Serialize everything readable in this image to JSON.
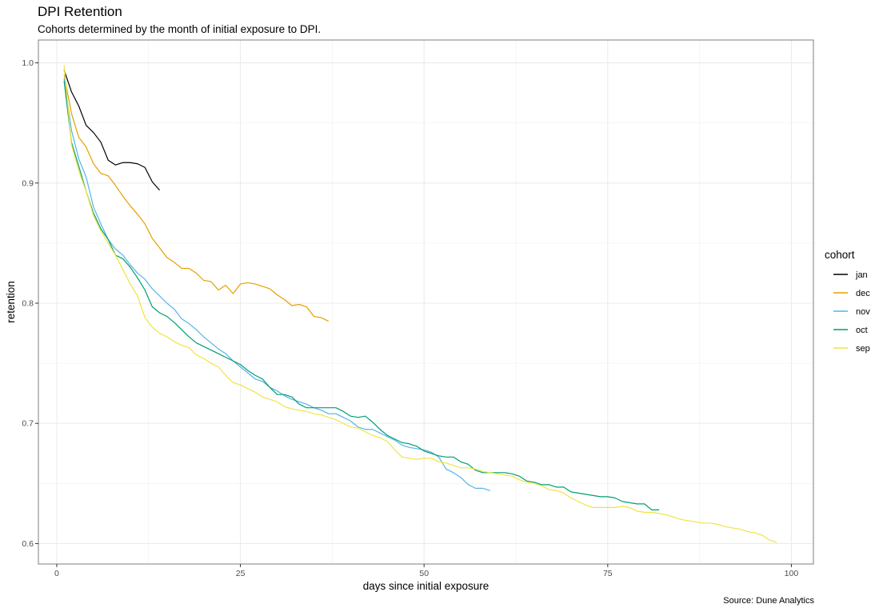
{
  "chart_data": {
    "type": "line",
    "title": "DPI Retention",
    "subtitle": "Cohorts determined by the month of initial exposure to DPI.",
    "caption": "Source: Dune Analytics",
    "xlabel": "days since initial exposure",
    "ylabel": "retention",
    "xlim": [
      -2.5,
      103
    ],
    "ylim": [
      0.583,
      1.019
    ],
    "x_ticks": [
      0,
      25,
      50,
      75,
      100
    ],
    "y_ticks": [
      0.6,
      0.7,
      0.8,
      0.9,
      1.0
    ],
    "y_tick_labels": [
      "0.6",
      "0.7",
      "0.8",
      "0.9",
      "1.0"
    ],
    "grid": true,
    "legend": {
      "title": "cohort",
      "position": "right"
    },
    "series": [
      {
        "name": "jan",
        "color": "#000000",
        "points": [
          [
            1,
            0.994
          ],
          [
            2,
            0.976
          ],
          [
            3,
            0.964
          ],
          [
            4,
            0.948
          ],
          [
            5,
            0.942
          ],
          [
            6,
            0.934
          ],
          [
            7,
            0.919
          ],
          [
            8,
            0.915
          ],
          [
            9,
            0.917
          ],
          [
            10,
            0.917
          ],
          [
            11,
            0.916
          ],
          [
            12,
            0.913
          ],
          [
            13,
            0.901
          ],
          [
            14,
            0.894
          ]
        ]
      },
      {
        "name": "dec",
        "color": "#E69F00",
        "points": [
          [
            1,
            0.99
          ],
          [
            2,
            0.958
          ],
          [
            3,
            0.938
          ],
          [
            4,
            0.93
          ],
          [
            5,
            0.916
          ],
          [
            6,
            0.908
          ],
          [
            7,
            0.906
          ],
          [
            8,
            0.898
          ],
          [
            9,
            0.889
          ],
          [
            10,
            0.881
          ],
          [
            11,
            0.874
          ],
          [
            12,
            0.866
          ],
          [
            13,
            0.854
          ],
          [
            14,
            0.846
          ],
          [
            15,
            0.838
          ],
          [
            16,
            0.834
          ],
          [
            17,
            0.829
          ],
          [
            18,
            0.829
          ],
          [
            19,
            0.825
          ],
          [
            20,
            0.819
          ],
          [
            21,
            0.818
          ],
          [
            22,
            0.811
          ],
          [
            23,
            0.815
          ],
          [
            24,
            0.808
          ],
          [
            25,
            0.816
          ],
          [
            26,
            0.817
          ],
          [
            27,
            0.816
          ],
          [
            28,
            0.814
          ],
          [
            29,
            0.812
          ],
          [
            30,
            0.807
          ],
          [
            31,
            0.803
          ],
          [
            32,
            0.798
          ],
          [
            33,
            0.799
          ],
          [
            34,
            0.797
          ],
          [
            35,
            0.789
          ],
          [
            36,
            0.788
          ],
          [
            37,
            0.785
          ]
        ]
      },
      {
        "name": "nov",
        "color": "#56B4E9",
        "points": [
          [
            1,
            0.987
          ],
          [
            2,
            0.944
          ],
          [
            3,
            0.92
          ],
          [
            4,
            0.905
          ],
          [
            5,
            0.88
          ],
          [
            6,
            0.866
          ],
          [
            7,
            0.853
          ],
          [
            8,
            0.845
          ],
          [
            9,
            0.84
          ],
          [
            10,
            0.832
          ],
          [
            11,
            0.825
          ],
          [
            12,
            0.82
          ],
          [
            13,
            0.812
          ],
          [
            14,
            0.806
          ],
          [
            15,
            0.8
          ],
          [
            16,
            0.795
          ],
          [
            17,
            0.787
          ],
          [
            18,
            0.783
          ],
          [
            19,
            0.778
          ],
          [
            20,
            0.772
          ],
          [
            21,
            0.767
          ],
          [
            22,
            0.762
          ],
          [
            23,
            0.758
          ],
          [
            24,
            0.752
          ],
          [
            25,
            0.747
          ],
          [
            26,
            0.742
          ],
          [
            27,
            0.737
          ],
          [
            28,
            0.735
          ],
          [
            29,
            0.73
          ],
          [
            30,
            0.727
          ],
          [
            31,
            0.723
          ],
          [
            32,
            0.72
          ],
          [
            33,
            0.718
          ],
          [
            34,
            0.716
          ],
          [
            35,
            0.713
          ],
          [
            36,
            0.711
          ],
          [
            37,
            0.708
          ],
          [
            38,
            0.708
          ],
          [
            39,
            0.705
          ],
          [
            40,
            0.702
          ],
          [
            41,
            0.697
          ],
          [
            42,
            0.695
          ],
          [
            43,
            0.695
          ],
          [
            44,
            0.692
          ],
          [
            45,
            0.689
          ],
          [
            46,
            0.686
          ],
          [
            47,
            0.682
          ],
          [
            48,
            0.68
          ],
          [
            49,
            0.679
          ],
          [
            50,
            0.678
          ],
          [
            51,
            0.676
          ],
          [
            52,
            0.672
          ],
          [
            53,
            0.662
          ],
          [
            54,
            0.659
          ],
          [
            55,
            0.655
          ],
          [
            56,
            0.649
          ],
          [
            57,
            0.646
          ],
          [
            58,
            0.646
          ],
          [
            59,
            0.644
          ]
        ]
      },
      {
        "name": "oct",
        "color": "#009E73",
        "points": [
          [
            1,
            0.985
          ],
          [
            2,
            0.934
          ],
          [
            3,
            0.914
          ],
          [
            4,
            0.893
          ],
          [
            5,
            0.875
          ],
          [
            6,
            0.862
          ],
          [
            7,
            0.853
          ],
          [
            8,
            0.84
          ],
          [
            9,
            0.837
          ],
          [
            10,
            0.83
          ],
          [
            11,
            0.821
          ],
          [
            12,
            0.811
          ],
          [
            13,
            0.797
          ],
          [
            14,
            0.792
          ],
          [
            15,
            0.789
          ],
          [
            16,
            0.784
          ],
          [
            17,
            0.778
          ],
          [
            18,
            0.772
          ],
          [
            19,
            0.767
          ],
          [
            20,
            0.764
          ],
          [
            21,
            0.761
          ],
          [
            22,
            0.758
          ],
          [
            23,
            0.755
          ],
          [
            24,
            0.752
          ],
          [
            25,
            0.749
          ],
          [
            26,
            0.744
          ],
          [
            27,
            0.74
          ],
          [
            28,
            0.737
          ],
          [
            29,
            0.73
          ],
          [
            30,
            0.724
          ],
          [
            31,
            0.724
          ],
          [
            32,
            0.722
          ],
          [
            33,
            0.716
          ],
          [
            34,
            0.713
          ],
          [
            35,
            0.713
          ],
          [
            36,
            0.713
          ],
          [
            37,
            0.713
          ],
          [
            38,
            0.713
          ],
          [
            39,
            0.71
          ],
          [
            40,
            0.706
          ],
          [
            41,
            0.705
          ],
          [
            42,
            0.706
          ],
          [
            43,
            0.701
          ],
          [
            44,
            0.695
          ],
          [
            45,
            0.69
          ],
          [
            46,
            0.687
          ],
          [
            47,
            0.684
          ],
          [
            48,
            0.683
          ],
          [
            49,
            0.681
          ],
          [
            50,
            0.677
          ],
          [
            51,
            0.675
          ],
          [
            52,
            0.673
          ],
          [
            53,
            0.672
          ],
          [
            54,
            0.672
          ],
          [
            55,
            0.668
          ],
          [
            56,
            0.666
          ],
          [
            57,
            0.661
          ],
          [
            58,
            0.659
          ],
          [
            59,
            0.659
          ],
          [
            60,
            0.659
          ],
          [
            61,
            0.659
          ],
          [
            62,
            0.658
          ],
          [
            63,
            0.656
          ],
          [
            64,
            0.652
          ],
          [
            65,
            0.651
          ],
          [
            66,
            0.649
          ],
          [
            67,
            0.649
          ],
          [
            68,
            0.647
          ],
          [
            69,
            0.647
          ],
          [
            70,
            0.643
          ],
          [
            71,
            0.642
          ],
          [
            72,
            0.641
          ],
          [
            73,
            0.64
          ],
          [
            74,
            0.639
          ],
          [
            75,
            0.639
          ],
          [
            76,
            0.638
          ],
          [
            77,
            0.635
          ],
          [
            78,
            0.634
          ],
          [
            79,
            0.633
          ],
          [
            80,
            0.633
          ],
          [
            81,
            0.628
          ],
          [
            82,
            0.628
          ]
        ]
      },
      {
        "name": "sep",
        "color": "#F0E442",
        "points": [
          [
            1,
            0.998
          ],
          [
            2,
            0.932
          ],
          [
            3,
            0.91
          ],
          [
            4,
            0.893
          ],
          [
            5,
            0.873
          ],
          [
            6,
            0.86
          ],
          [
            7,
            0.85
          ],
          [
            8,
            0.84
          ],
          [
            9,
            0.828
          ],
          [
            10,
            0.816
          ],
          [
            11,
            0.806
          ],
          [
            12,
            0.788
          ],
          [
            13,
            0.78
          ],
          [
            14,
            0.775
          ],
          [
            15,
            0.772
          ],
          [
            16,
            0.768
          ],
          [
            17,
            0.765
          ],
          [
            18,
            0.763
          ],
          [
            19,
            0.757
          ],
          [
            20,
            0.754
          ],
          [
            21,
            0.75
          ],
          [
            22,
            0.747
          ],
          [
            23,
            0.74
          ],
          [
            24,
            0.734
          ],
          [
            25,
            0.732
          ],
          [
            26,
            0.729
          ],
          [
            27,
            0.726
          ],
          [
            28,
            0.722
          ],
          [
            29,
            0.72
          ],
          [
            30,
            0.718
          ],
          [
            31,
            0.714
          ],
          [
            32,
            0.712
          ],
          [
            33,
            0.711
          ],
          [
            34,
            0.71
          ],
          [
            35,
            0.708
          ],
          [
            36,
            0.707
          ],
          [
            37,
            0.705
          ],
          [
            38,
            0.703
          ],
          [
            39,
            0.7
          ],
          [
            40,
            0.697
          ],
          [
            41,
            0.696
          ],
          [
            42,
            0.693
          ],
          [
            43,
            0.69
          ],
          [
            44,
            0.688
          ],
          [
            45,
            0.685
          ],
          [
            46,
            0.678
          ],
          [
            47,
            0.672
          ],
          [
            48,
            0.671
          ],
          [
            49,
            0.67
          ],
          [
            50,
            0.671
          ],
          [
            51,
            0.671
          ],
          [
            52,
            0.668
          ],
          [
            53,
            0.667
          ],
          [
            54,
            0.665
          ],
          [
            55,
            0.663
          ],
          [
            56,
            0.663
          ],
          [
            57,
            0.662
          ],
          [
            58,
            0.66
          ],
          [
            59,
            0.659
          ],
          [
            60,
            0.658
          ],
          [
            61,
            0.657
          ],
          [
            62,
            0.656
          ],
          [
            63,
            0.653
          ],
          [
            64,
            0.651
          ],
          [
            65,
            0.65
          ],
          [
            66,
            0.648
          ],
          [
            67,
            0.645
          ],
          [
            68,
            0.644
          ],
          [
            69,
            0.642
          ],
          [
            70,
            0.638
          ],
          [
            71,
            0.635
          ],
          [
            72,
            0.632
          ],
          [
            73,
            0.63
          ],
          [
            74,
            0.63
          ],
          [
            75,
            0.63
          ],
          [
            76,
            0.63
          ],
          [
            77,
            0.631
          ],
          [
            78,
            0.63
          ],
          [
            79,
            0.627
          ],
          [
            80,
            0.626
          ],
          [
            81,
            0.626
          ],
          [
            82,
            0.625
          ],
          [
            83,
            0.624
          ],
          [
            84,
            0.622
          ],
          [
            85,
            0.62
          ],
          [
            86,
            0.619
          ],
          [
            87,
            0.618
          ],
          [
            88,
            0.617
          ],
          [
            89,
            0.617
          ],
          [
            90,
            0.616
          ],
          [
            91,
            0.614
          ],
          [
            92,
            0.613
          ],
          [
            93,
            0.612
          ],
          [
            94,
            0.61
          ],
          [
            95,
            0.609
          ],
          [
            96,
            0.607
          ],
          [
            97,
            0.603
          ],
          [
            98,
            0.601
          ]
        ]
      }
    ]
  }
}
